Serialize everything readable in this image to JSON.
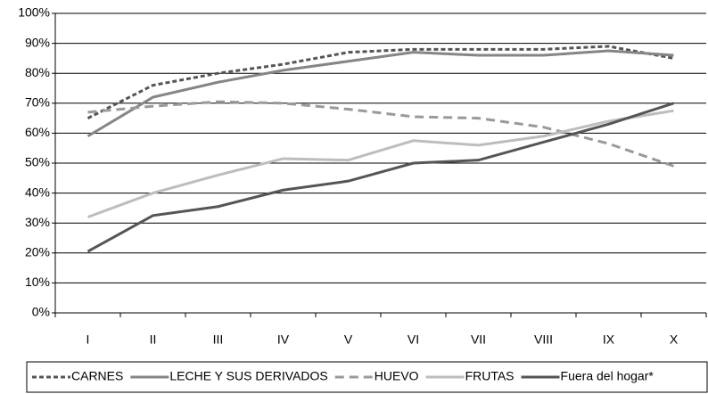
{
  "chart_data": {
    "type": "line",
    "categories": [
      "I",
      "II",
      "III",
      "IV",
      "V",
      "VI",
      "VII",
      "VIII",
      "IX",
      "X"
    ],
    "series": [
      {
        "name": "CARNES",
        "color": "#555555",
        "values": [
          65,
          76,
          80,
          83,
          87,
          88,
          88,
          88,
          89,
          85
        ]
      },
      {
        "name": "LECHE Y SUS DERIVADOS",
        "color": "#858585",
        "values": [
          59,
          72,
          77,
          81,
          84,
          87,
          86,
          86,
          87.5,
          86
        ]
      },
      {
        "name": "HUEVO",
        "color": "#9a9a9a",
        "values": [
          67,
          69,
          70.5,
          70,
          68,
          65.5,
          65,
          62,
          56.5,
          49
        ]
      },
      {
        "name": "FRUTAS",
        "color": "#bdbdbd",
        "values": [
          32,
          40,
          46,
          51.5,
          51,
          57.5,
          56,
          59,
          64,
          67.5
        ]
      },
      {
        "name": "Fuera del hogar*",
        "color": "#555555",
        "values": [
          20.5,
          32.5,
          35.5,
          41,
          44,
          50,
          51,
          57,
          63,
          70
        ]
      }
    ],
    "ylim": [
      0,
      100
    ],
    "yticks": [
      {
        "value": 0,
        "label": "0%"
      },
      {
        "value": 10,
        "label": "10%"
      },
      {
        "value": 20,
        "label": "20%"
      },
      {
        "value": 30,
        "label": "30%"
      },
      {
        "value": 40,
        "label": "40%"
      },
      {
        "value": 50,
        "label": "50%"
      },
      {
        "value": 60,
        "label": "60%"
      },
      {
        "value": 70,
        "label": "70%"
      },
      {
        "value": 80,
        "label": "80%"
      },
      {
        "value": 90,
        "label": "90%"
      },
      {
        "value": 100,
        "label": "100%"
      }
    ],
    "grid": true
  }
}
